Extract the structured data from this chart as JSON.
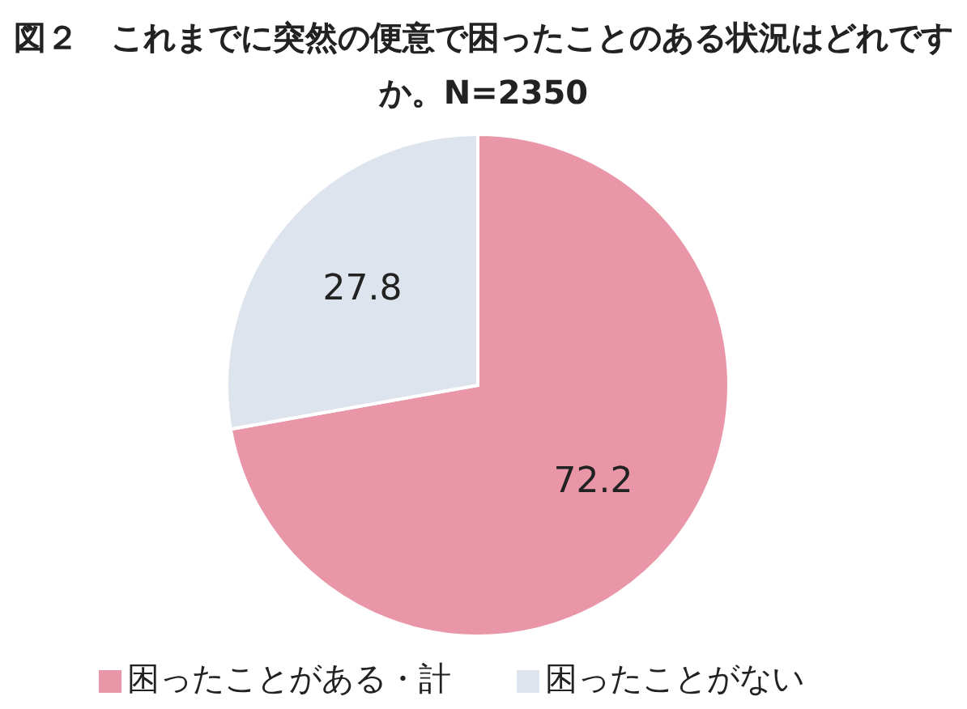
{
  "chart_data": {
    "type": "pie",
    "title": "図２　これまでに突然の便意で困ったことのある状況はどれですか。N=2350",
    "categories": [
      "困ったことがある・計",
      "困ったことがない"
    ],
    "values": [
      72.2,
      27.8
    ],
    "colors": [
      "#e896a8",
      "#dde4ee"
    ],
    "data_labels": true,
    "legend": "bottom"
  }
}
